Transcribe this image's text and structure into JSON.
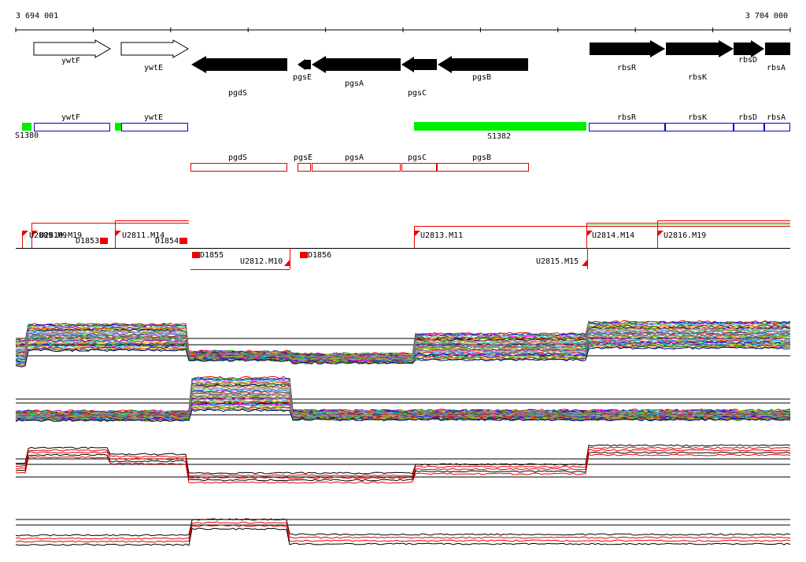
{
  "axis": {
    "start_label": "3 694 001",
    "end_label": "3 704 000"
  },
  "colors": {
    "gene": "#000000",
    "annotation_blue": "#0000cc",
    "annotation_red": "#dd0000",
    "segment_green": "#00ee00",
    "unit_red": "#ee0000"
  },
  "genes_forward": [
    {
      "id": "ywtF",
      "label": "ywtF",
      "filled": false
    },
    {
      "id": "ywtE",
      "label": "ywtE",
      "filled": false
    },
    {
      "id": "rbsR",
      "label": "rbsR",
      "filled": true
    },
    {
      "id": "rbsK",
      "label": "rbsK",
      "filled": true
    },
    {
      "id": "rbsD",
      "label": "rbsD",
      "filled": true
    },
    {
      "id": "rbsA",
      "label": "rbsA",
      "filled": true
    }
  ],
  "genes_reverse": [
    {
      "id": "pgdS",
      "label": "pgdS"
    },
    {
      "id": "pgsE",
      "label": "pgsE"
    },
    {
      "id": "pgsA",
      "label": "pgsA"
    },
    {
      "id": "pgsC",
      "label": "pgsC"
    },
    {
      "id": "pgsB",
      "label": "pgsB"
    }
  ],
  "annotation_forward": [
    "ywtF",
    "ywtE",
    "rbsR",
    "rbsK",
    "rbsD",
    "rbsA"
  ],
  "annotation_reverse": [
    "pgdS",
    "pgsE",
    "pgsA",
    "pgsC",
    "pgsB"
  ],
  "segments": [
    "S1380",
    "S1382"
  ],
  "units_top": [
    "U2809.M9",
    "U2810.M19",
    "U2811.M14",
    "U2813.M11",
    "U2814.M14",
    "U2816.M19"
  ],
  "units_bottom": [
    "U2812.M10",
    "U2815.M15"
  ],
  "downshifts": [
    "D1853",
    "D1854",
    "D1855",
    "D1856"
  ]
}
